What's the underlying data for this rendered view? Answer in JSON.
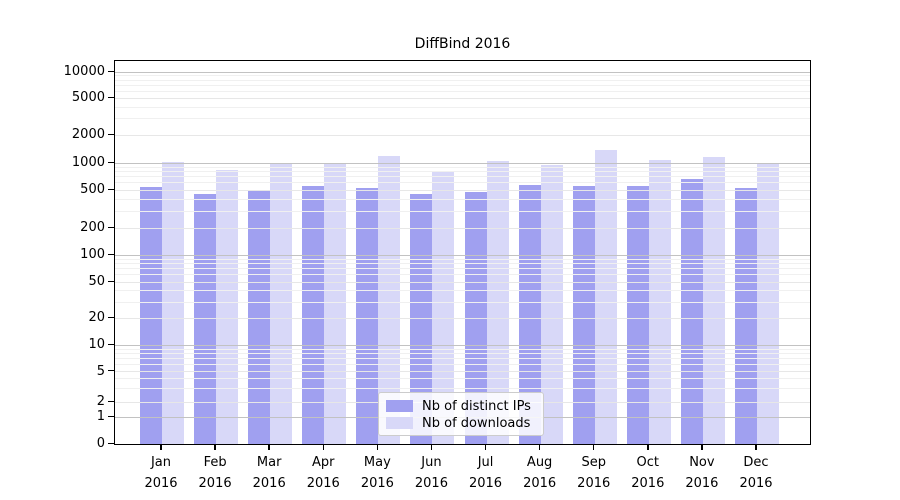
{
  "chart_data": {
    "type": "bar",
    "title": "DiffBind 2016",
    "categories": [
      {
        "month": "Jan",
        "year": "2016"
      },
      {
        "month": "Feb",
        "year": "2016"
      },
      {
        "month": "Mar",
        "year": "2016"
      },
      {
        "month": "Apr",
        "year": "2016"
      },
      {
        "month": "May",
        "year": "2016"
      },
      {
        "month": "Jun",
        "year": "2016"
      },
      {
        "month": "Jul",
        "year": "2016"
      },
      {
        "month": "Aug",
        "year": "2016"
      },
      {
        "month": "Sep",
        "year": "2016"
      },
      {
        "month": "Oct",
        "year": "2016"
      },
      {
        "month": "Nov",
        "year": "2016"
      },
      {
        "month": "Dec",
        "year": "2016"
      }
    ],
    "series": [
      {
        "name": "Nb of distinct IPs",
        "color": "#a0a0f0",
        "values": [
          545,
          455,
          505,
          560,
          530,
          455,
          480,
          575,
          560,
          550,
          665,
          530
        ]
      },
      {
        "name": "Nb of downloads",
        "color": "#d8d8f8",
        "values": [
          1025,
          830,
          1000,
          1000,
          1190,
          820,
          1050,
          950,
          1370,
          1065,
          1165,
          1000
        ]
      }
    ],
    "yscale": "symlog",
    "yticks": [
      0,
      1,
      2,
      5,
      10,
      20,
      50,
      100,
      200,
      500,
      1000,
      2000,
      5000,
      10000
    ],
    "ylim": [
      0,
      13000
    ],
    "xlabel": "",
    "ylabel": "",
    "grid": true,
    "legend_position": "lower center"
  },
  "colors": {
    "background": "#ffffff",
    "axis": "#000000",
    "major_grid": "#c2c2c2",
    "minor_grid": "#e7e7e7"
  }
}
